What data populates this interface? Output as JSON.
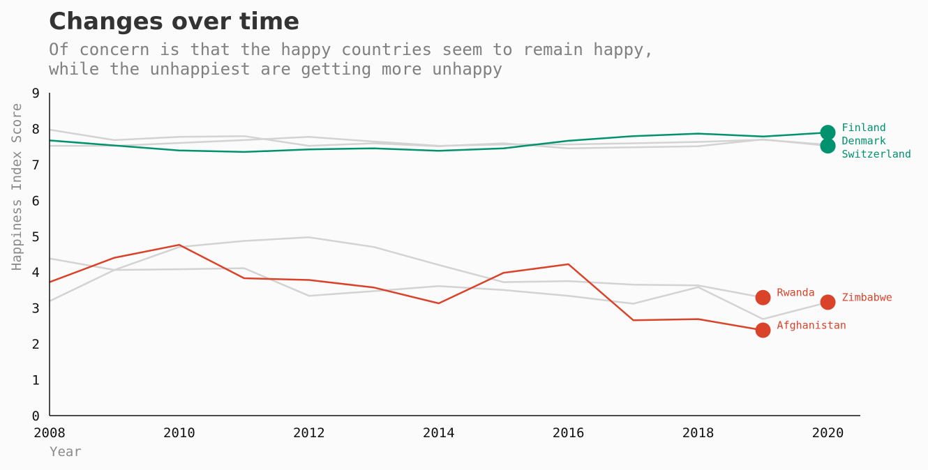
{
  "chart_data": {
    "type": "line",
    "title": "Changes over time",
    "subtitle": [
      "Of concern is that the happy countries seem to remain happy,",
      "while the unhappiest are getting more unhappy"
    ],
    "xlabel": "Year",
    "ylabel": "Happiness Index Score",
    "xlim": [
      2008,
      2020.5
    ],
    "ylim": [
      0,
      9
    ],
    "xticks": [
      2008,
      2010,
      2012,
      2014,
      2016,
      2018,
      2020
    ],
    "yticks": [
      0,
      1,
      2,
      3,
      4,
      5,
      6,
      7,
      8,
      9
    ],
    "grid": false,
    "colors": {
      "background": "#fbfbfb",
      "happy": "#00916e",
      "unhappy": "#d9432a",
      "other": "#d3d3d3"
    },
    "series": [
      {
        "name": "",
        "group": "other",
        "x": [
          2008,
          2009,
          2010,
          2011,
          2012,
          2013,
          2014,
          2015,
          2016,
          2017,
          2018,
          2019,
          2020
        ],
        "y": [
          7.97,
          7.68,
          7.77,
          7.79,
          7.52,
          7.59,
          7.51,
          7.59,
          7.45,
          7.48,
          7.51,
          7.7,
          7.52
        ]
      },
      {
        "name": "",
        "group": "other",
        "x": [
          2008,
          2009,
          2010,
          2011,
          2012,
          2013,
          2014,
          2015,
          2016,
          2017,
          2018,
          2019,
          2020
        ],
        "y": [
          7.52,
          7.52,
          7.6,
          7.68,
          7.77,
          7.64,
          7.52,
          7.56,
          7.56,
          7.59,
          7.63,
          7.69,
          7.55
        ]
      },
      {
        "name": "",
        "group": "other",
        "x": [
          2008,
          2009,
          2010,
          2011,
          2012,
          2013,
          2014,
          2015,
          2016,
          2017,
          2018,
          2019,
          2020
        ],
        "y": [
          4.38,
          4.06,
          4.08,
          4.11,
          3.34,
          3.47,
          3.61,
          3.5,
          3.34,
          3.12,
          3.58,
          2.69,
          3.16
        ]
      },
      {
        "name": "",
        "group": "other",
        "x": [
          2008,
          2009,
          2010,
          2011,
          2012,
          2013,
          2014,
          2015,
          2016,
          2017,
          2018,
          2019
        ],
        "y": [
          3.19,
          4.06,
          4.7,
          4.87,
          4.97,
          4.7,
          4.2,
          3.72,
          3.75,
          3.65,
          3.63,
          3.29
        ]
      },
      {
        "name": "Finland",
        "group": "happy",
        "x": [
          2008,
          2009,
          2010,
          2011,
          2012,
          2013,
          2014,
          2015,
          2016,
          2017,
          2018,
          2019,
          2020
        ],
        "y": [
          7.67,
          7.53,
          7.39,
          7.35,
          7.42,
          7.45,
          7.38,
          7.45,
          7.66,
          7.79,
          7.86,
          7.78,
          7.89
        ]
      },
      {
        "name": "Afghanistan",
        "group": "unhappy",
        "x": [
          2008,
          2009,
          2010,
          2011,
          2012,
          2013,
          2014,
          2015,
          2016,
          2017,
          2018,
          2019
        ],
        "y": [
          3.72,
          4.4,
          4.76,
          3.83,
          3.78,
          3.57,
          3.13,
          3.98,
          4.22,
          2.66,
          2.69,
          2.38
        ]
      }
    ],
    "endpoints": [
      {
        "label": "Finland",
        "x": 2020,
        "y": 7.89,
        "group": "happy",
        "dx": 20,
        "dy": -2
      },
      {
        "label": "Denmark",
        "x": 2020,
        "y": 7.52,
        "group": "happy",
        "dx": 20,
        "dy": -2
      },
      {
        "label": "Switzerland",
        "x": 2020,
        "y": 7.52,
        "group": "happy",
        "dx": 20,
        "dy": 17
      },
      {
        "label": "Rwanda",
        "x": 2019,
        "y": 3.29,
        "group": "unhappy",
        "dx": 20,
        "dy": -2
      },
      {
        "label": "Zimbabwe",
        "x": 2020,
        "y": 3.16,
        "group": "unhappy",
        "dx": 20,
        "dy": -2
      },
      {
        "label": "Afghanistan",
        "x": 2019,
        "y": 2.38,
        "group": "unhappy",
        "dx": 20,
        "dy": -2
      }
    ]
  }
}
